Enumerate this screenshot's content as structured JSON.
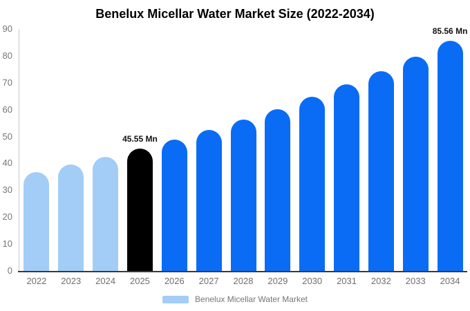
{
  "chart_data": {
    "type": "bar",
    "title": "Benelux Micellar Water Market Size (2022-2034)",
    "xlabel": "",
    "ylabel": "",
    "unit": "Mn",
    "categories": [
      "2022",
      "2023",
      "2024",
      "2025",
      "2026",
      "2027",
      "2028",
      "2029",
      "2030",
      "2031",
      "2032",
      "2033",
      "2034"
    ],
    "values": [
      36.9,
      39.6,
      42.5,
      45.55,
      48.86,
      52.41,
      56.22,
      60.3,
      64.68,
      69.37,
      74.41,
      79.81,
      85.56
    ],
    "bar_colors": [
      "#a3cdf7",
      "#a3cdf7",
      "#a3cdf7",
      "#000000",
      "#0a6cf5",
      "#0a6cf5",
      "#0a6cf5",
      "#0a6cf5",
      "#0a6cf5",
      "#0a6cf5",
      "#0a6cf5",
      "#0a6cf5",
      "#0a6cf5"
    ],
    "data_labels": [
      {
        "category": "2025",
        "text": "45.55 Mn"
      },
      {
        "category": "2034",
        "text": "85.56 Mn"
      }
    ],
    "ylim": [
      0,
      90
    ],
    "yticks": [
      0,
      10,
      20,
      30,
      40,
      50,
      60,
      70,
      80,
      90
    ],
    "grid": false,
    "legend_position": "bottom"
  },
  "legend": {
    "label": "Benelux Micellar Water Market",
    "swatch_color": "#a3cdf7"
  },
  "colors": {
    "historic": "#a3cdf7",
    "base_year": "#000000",
    "forecast": "#0a6cf5",
    "axis_text": "#757575",
    "background": "#ffffff"
  }
}
